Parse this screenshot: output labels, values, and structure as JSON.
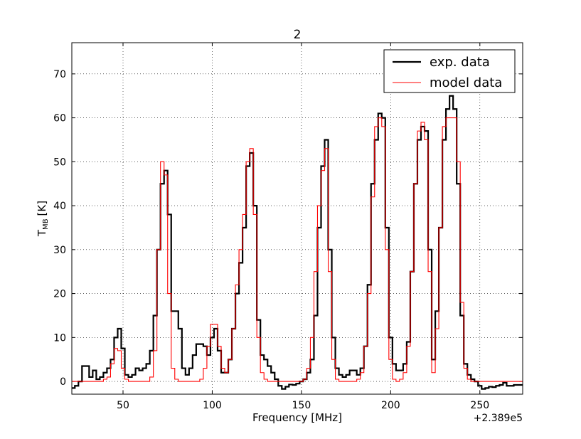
{
  "chart_data": {
    "type": "step",
    "title": "2",
    "xlabel": "Frequency [MHz]",
    "ylabel": "T",
    "ylabel_sub": "MB",
    "ylabel_unit": "[K]",
    "x_offset_label": "+2.389e5",
    "xlim": [
      21.3,
      274
    ],
    "ylim": [
      -2.9,
      77.1
    ],
    "xticks": [
      50,
      100,
      150,
      200,
      250
    ],
    "yticks": [
      0,
      10,
      20,
      30,
      40,
      50,
      60,
      70
    ],
    "grid": true,
    "legend": "upper right",
    "x": [
      22,
      24,
      26,
      28,
      30,
      32,
      34,
      36,
      38,
      40,
      42,
      44,
      46,
      48,
      50,
      52,
      54,
      56,
      58,
      60,
      62,
      64,
      66,
      68,
      70,
      72,
      74,
      76,
      78,
      80,
      82,
      84,
      86,
      88,
      90,
      92,
      94,
      96,
      98,
      100,
      102,
      104,
      106,
      108,
      110,
      112,
      114,
      116,
      118,
      120,
      122,
      124,
      126,
      128,
      130,
      132,
      134,
      136,
      138,
      140,
      142,
      144,
      146,
      148,
      150,
      152,
      154,
      156,
      158,
      160,
      162,
      164,
      166,
      168,
      170,
      172,
      174,
      176,
      178,
      180,
      182,
      184,
      186,
      188,
      190,
      192,
      194,
      196,
      198,
      200,
      202,
      204,
      206,
      208,
      210,
      212,
      214,
      216,
      218,
      220,
      222,
      224,
      226,
      228,
      230,
      232,
      234,
      236,
      238,
      240,
      242,
      244,
      246,
      248,
      250,
      252,
      254,
      256,
      258,
      260,
      262,
      264,
      266,
      268,
      270,
      272,
      274
    ],
    "series": [
      {
        "name": "exp. data",
        "color": "#000000",
        "width": 2.2,
        "values": [
          -1.5,
          -1,
          0,
          3.5,
          3.5,
          1,
          2.5,
          0.5,
          1,
          2,
          3,
          5,
          10,
          12,
          7.5,
          1.5,
          1,
          1.5,
          3,
          2.5,
          3,
          4,
          7,
          15,
          30,
          45,
          48,
          38,
          16,
          16,
          12,
          3,
          1.5,
          3,
          6,
          8.5,
          8.5,
          8,
          6,
          10,
          12,
          7,
          2,
          2,
          5,
          12,
          20,
          27,
          35,
          49,
          52,
          40,
          14,
          6,
          5,
          3.5,
          2,
          0.5,
          -1,
          -1.7,
          -1.2,
          -0.7,
          -0.8,
          -0.5,
          0,
          0.5,
          2,
          5,
          15,
          35,
          49,
          55,
          30,
          10,
          3,
          1.5,
          1,
          1.5,
          2.5,
          2.5,
          1.5,
          3,
          8,
          22,
          45,
          55,
          61,
          60,
          35,
          10,
          4,
          2.5,
          2.5,
          4,
          9,
          25,
          45,
          55,
          58,
          57,
          30,
          5,
          16,
          35,
          55,
          62,
          65,
          62,
          45,
          15,
          4,
          1.5,
          0.5,
          0,
          -1,
          -1.7,
          -1.5,
          -1.2,
          -1.3,
          -1,
          -0.8,
          -0.3,
          -1,
          -1,
          -0.8,
          -0.8,
          -0.8
        ]
      },
      {
        "name": "model data",
        "color": "#ff0000",
        "width": 1.1,
        "values": [
          0,
          0,
          0,
          0,
          0,
          0,
          0,
          0,
          0,
          0.5,
          1,
          4,
          7.5,
          7,
          3,
          0.5,
          0,
          0,
          0,
          0,
          0,
          0,
          1,
          7,
          30,
          50,
          47,
          20,
          3,
          0.5,
          0,
          0,
          0,
          0,
          0,
          0,
          0.5,
          3,
          8,
          13,
          13,
          8,
          3,
          2,
          5,
          12,
          22,
          30,
          38,
          50,
          53,
          38,
          10,
          2,
          0.5,
          0,
          0,
          0,
          0,
          0,
          0,
          0,
          0,
          0,
          0,
          0.5,
          3,
          10,
          25,
          40,
          48,
          53,
          25,
          5,
          0.5,
          0,
          0,
          0,
          0,
          0,
          0.5,
          2,
          8,
          20,
          42,
          58,
          60,
          58,
          30,
          5,
          0.5,
          0,
          0.5,
          2,
          8,
          25,
          45,
          57,
          59,
          55,
          25,
          2,
          12,
          35,
          58,
          60,
          60,
          60,
          50,
          18,
          3,
          0.5,
          0,
          0,
          0,
          0,
          0,
          0,
          0,
          0,
          0,
          0,
          0,
          0,
          0,
          0,
          0
        ]
      }
    ]
  }
}
